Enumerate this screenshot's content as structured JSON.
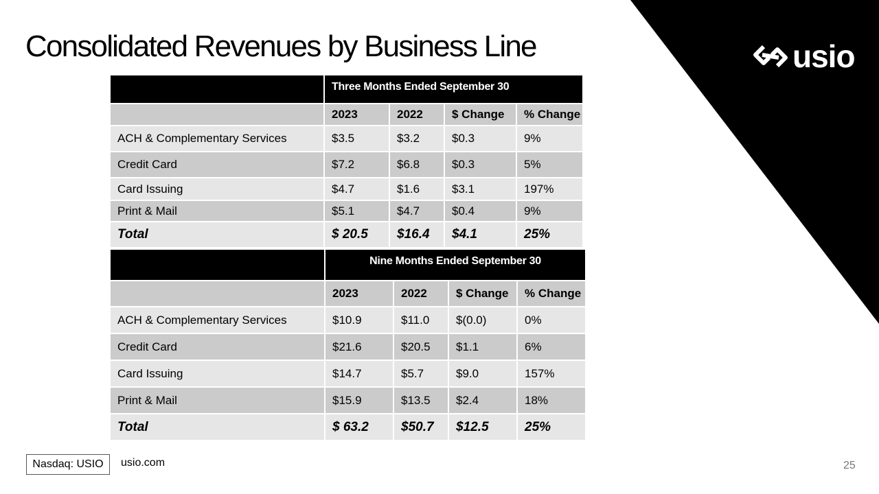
{
  "slide": {
    "title": "Consolidated Revenues by Business Line",
    "logo_text": "usio",
    "logo_icon": "usio-link-mark-icon",
    "background_color": "#ffffff",
    "accent_color": "#000000",
    "row_light_color": "#e6e6e6",
    "row_dark_color": "#cbcbcb",
    "footer": {
      "ticker": "Nasdaq: USIO",
      "website": "usio.com",
      "page_number": "25"
    }
  },
  "three_months": {
    "period_label": "Three Months Ended September 30",
    "columns": [
      "2023",
      "2022",
      "$ Change",
      "% Change"
    ],
    "rows": [
      {
        "label": "ACH & Complementary Services",
        "cells": [
          "$3.5",
          "$3.2",
          "$0.3",
          "9%"
        ]
      },
      {
        "label": "Credit Card",
        "cells": [
          "$7.2",
          "$6.8",
          "$0.3",
          "5%"
        ]
      },
      {
        "label": "Card Issuing",
        "cells": [
          "$4.7",
          "$1.6",
          "$3.1",
          "197%"
        ]
      },
      {
        "label": "Print & Mail",
        "cells": [
          "$5.1",
          "$4.7",
          "$0.4",
          "9%"
        ]
      }
    ],
    "total": {
      "label": "Total",
      "cells": [
        "$ 20.5",
        "$16.4",
        "$4.1",
        "25%"
      ]
    }
  },
  "nine_months": {
    "period_label": "Nine Months Ended September 30",
    "columns": [
      "2023",
      "2022",
      "$ Change",
      "% Change"
    ],
    "rows": [
      {
        "label": "ACH & Complementary Services",
        "cells": [
          "$10.9",
          "$11.0",
          "$(0.0)",
          "0%"
        ]
      },
      {
        "label": "Credit Card",
        "cells": [
          "$21.6",
          "$20.5",
          "$1.1",
          "6%"
        ]
      },
      {
        "label": "Card Issuing",
        "cells": [
          "$14.7",
          "$5.7",
          "$9.0",
          "157%"
        ]
      },
      {
        "label": "Print & Mail",
        "cells": [
          "$15.9",
          "$13.5",
          "$2.4",
          "18%"
        ]
      }
    ],
    "total": {
      "label": "Total",
      "cells": [
        "$ 63.2",
        "$50.7",
        "$12.5",
        "25%"
      ]
    }
  }
}
